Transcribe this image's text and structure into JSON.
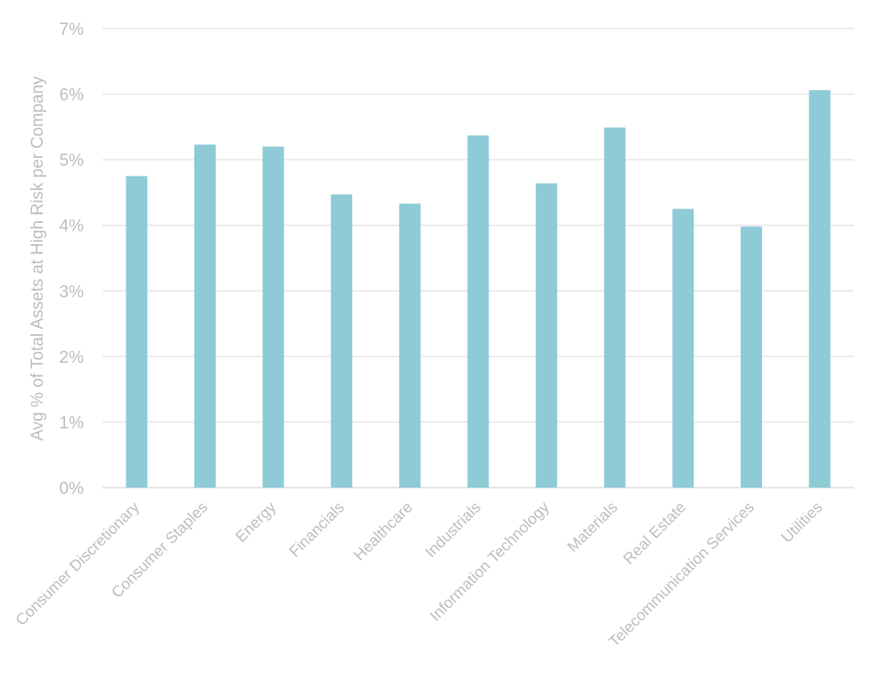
{
  "chart_data": {
    "type": "bar",
    "title": "",
    "xlabel": "",
    "ylabel": "Avg % of Total Assets at High Risk per Company",
    "ylim": [
      0,
      7
    ],
    "yticks": [
      "0%",
      "1%",
      "2%",
      "3%",
      "4%",
      "5%",
      "6%",
      "7%"
    ],
    "grid": true,
    "categories": [
      "Consumer Discretionary",
      "Consumer Staples",
      "Energy",
      "Financials",
      "Healthcare",
      "Industrials",
      "Information Technology",
      "Materials",
      "Real Estate",
      "Telecommunication Services",
      "Utilities"
    ],
    "values": [
      4.75,
      5.23,
      5.2,
      4.47,
      4.33,
      5.37,
      4.64,
      5.49,
      4.25,
      3.98,
      6.06
    ],
    "colors": {
      "bar": "#8ecbd7",
      "grid": "#e6e6e6",
      "text": "#bdbdbd"
    }
  }
}
